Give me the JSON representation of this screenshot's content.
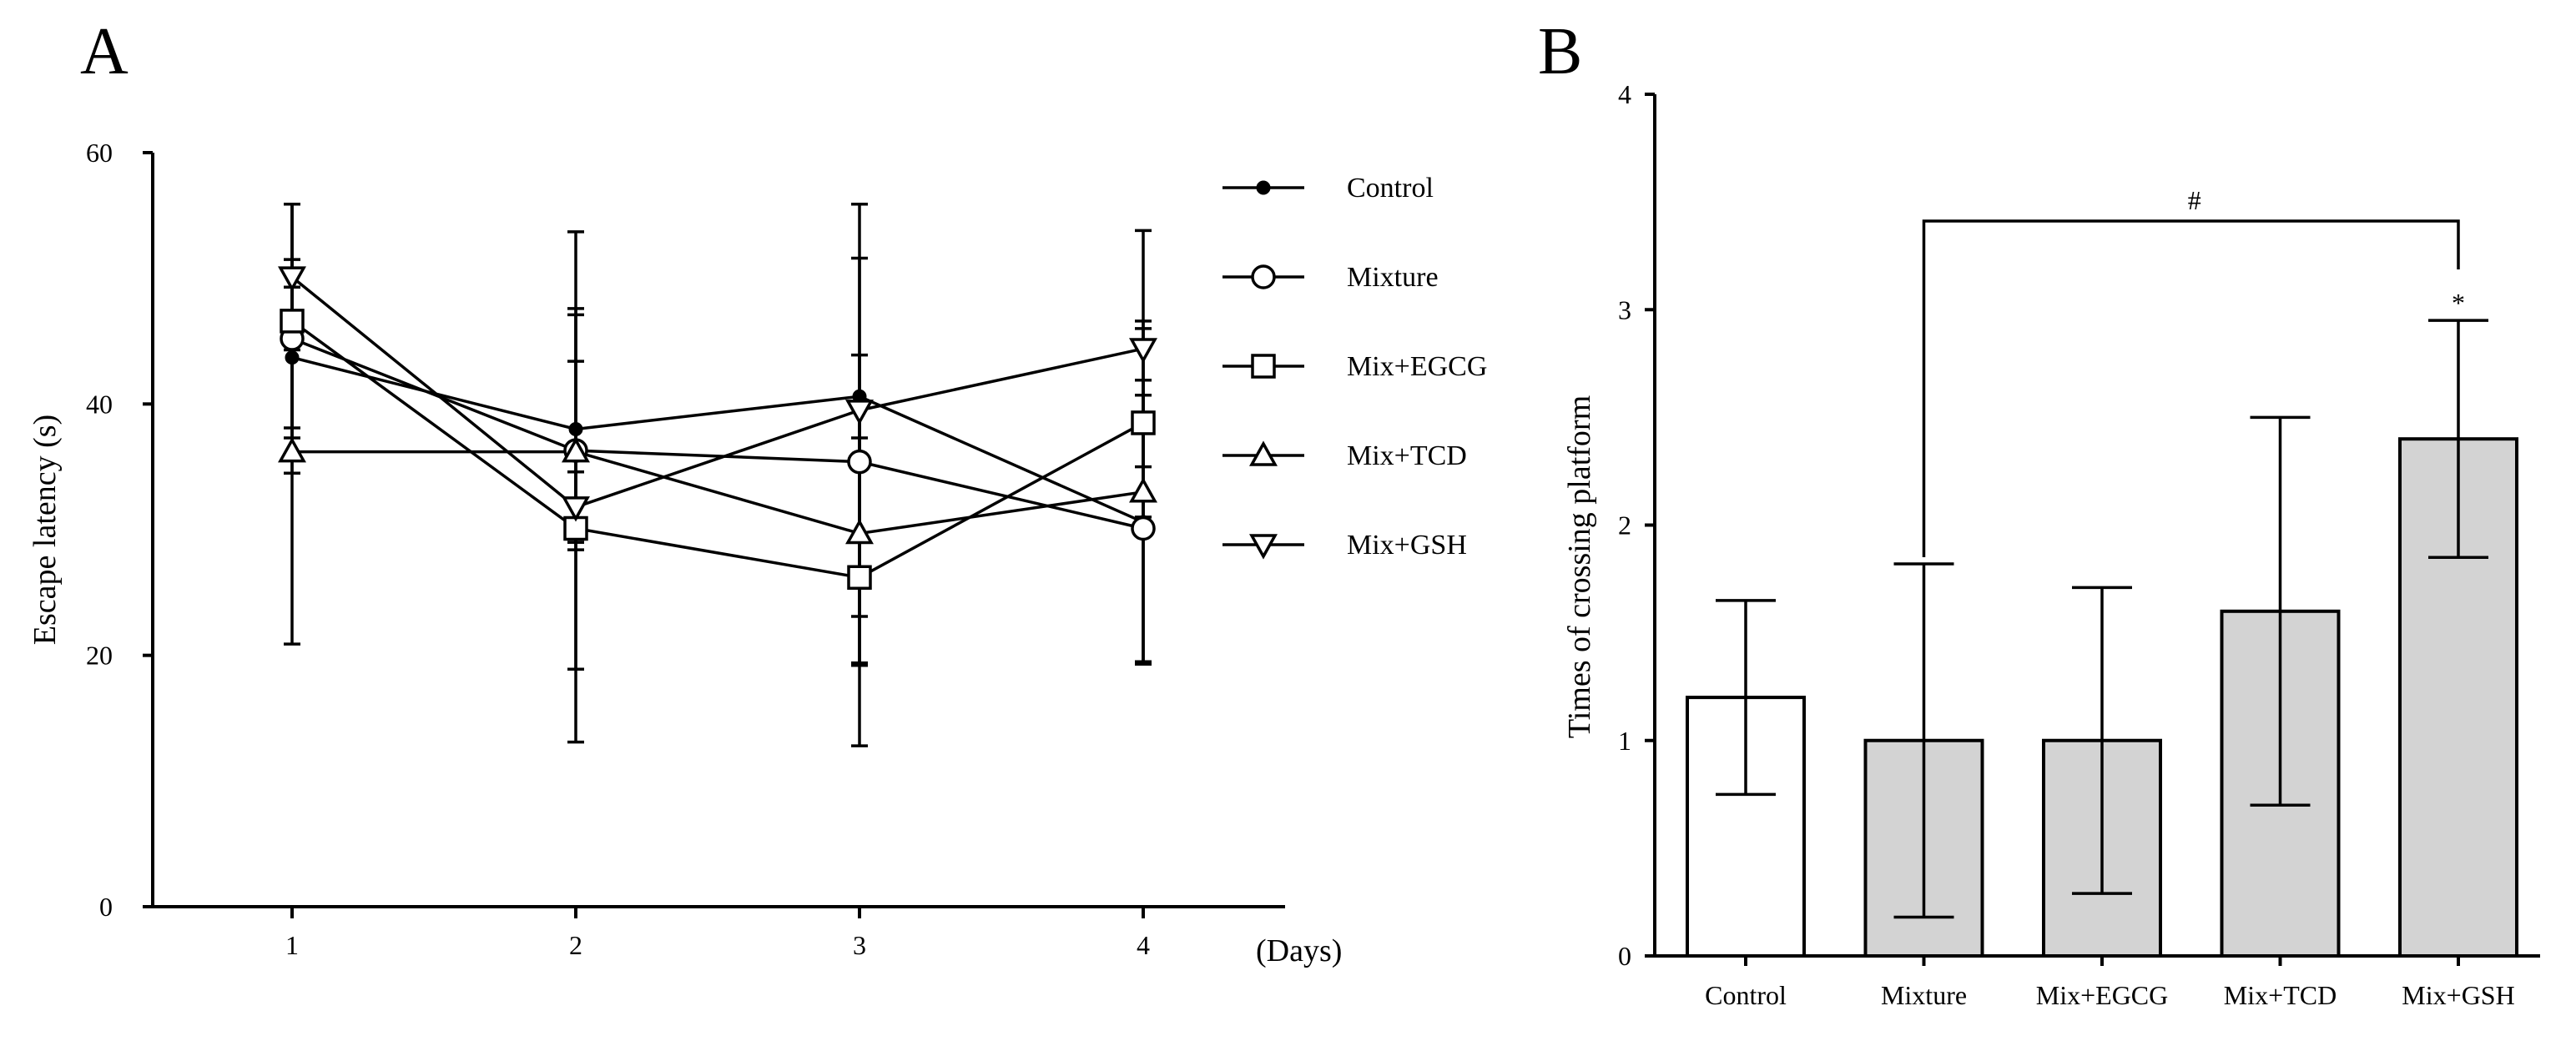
{
  "chart_data": [
    {
      "panel": "A",
      "type": "line",
      "xlabel": "(Days)",
      "ylabel": "Escape latency (s)",
      "x": [
        1,
        2,
        3,
        4
      ],
      "x_tick_labels": [
        "1",
        "2",
        "3",
        "4"
      ],
      "ylim": [
        0,
        60
      ],
      "y_ticks": [
        0,
        20,
        40,
        60
      ],
      "y_tick_labels": [
        "0",
        "20",
        "40",
        "60"
      ],
      "legend_position": "top-right",
      "series": [
        {
          "name": "Control",
          "marker": "dot",
          "values": [
            43.7,
            38.0,
            40.6,
            30.6
          ],
          "error": [
            5.6,
            9.6,
            3.3,
            11.3
          ]
        },
        {
          "name": "Mixture",
          "marker": "circle",
          "values": [
            45.2,
            36.3,
            35.4,
            30.1
          ],
          "error": [
            10.7,
            17.4,
            16.2,
            10.6
          ]
        },
        {
          "name": "Mix+EGCG",
          "marker": "square",
          "values": [
            46.6,
            30.1,
            26.2,
            38.5
          ],
          "error": [
            9.3,
            17.0,
            13.4,
            7.5
          ]
        },
        {
          "name": "Mix+TCD",
          "marker": "triangle-up",
          "values": [
            36.2,
            36.2,
            29.7,
            33.0
          ],
          "error": [
            15.3,
            7.2,
            10.3,
            13.6
          ]
        },
        {
          "name": "Mix+GSH",
          "marker": "triangle-down",
          "values": [
            50.1,
            31.8,
            39.5,
            44.4
          ],
          "error": [
            5.8,
            2.8,
            16.4,
            9.4
          ]
        }
      ]
    },
    {
      "panel": "B",
      "type": "bar",
      "ylabel": "Times of crossing platform",
      "categories": [
        "Control",
        "Mixture",
        "Mix+EGCG",
        "Mix+TCD",
        "Mix+GSH"
      ],
      "values": [
        1.2,
        1.0,
        1.0,
        1.6,
        2.4
      ],
      "error": [
        0.45,
        0.82,
        0.71,
        0.9,
        0.55
      ],
      "fill_colors": [
        "#ffffff",
        "#d3d3d3",
        "#d3d3d3",
        "#d3d3d3",
        "#d3d3d3"
      ],
      "ylim": [
        0,
        4
      ],
      "y_ticks": [
        0,
        1,
        2,
        3,
        4
      ],
      "y_tick_labels": [
        "0",
        "1",
        "2",
        "3",
        "4"
      ],
      "annotations": [
        {
          "text": "#",
          "type": "bracket",
          "from": "Mixture",
          "to": "Mix+GSH"
        },
        {
          "text": "*",
          "type": "label",
          "category": "Mix+GSH"
        }
      ]
    }
  ],
  "panel_labels": {
    "a": "A",
    "b": "B"
  }
}
